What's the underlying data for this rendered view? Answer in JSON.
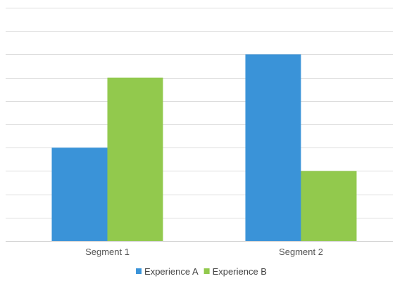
{
  "chart_data": {
    "type": "bar",
    "title": "",
    "xlabel": "",
    "ylabel": "",
    "categories": [
      "Segment 1",
      "Segment 2"
    ],
    "series": [
      {
        "name": "Experience A",
        "values": [
          4,
          8
        ],
        "color": "#3a93d8"
      },
      {
        "name": "Experience B",
        "values": [
          7,
          3
        ],
        "color": "#92c94d"
      }
    ],
    "ylim": [
      0,
      10
    ],
    "grid": true,
    "grid_color": "#dddddd",
    "legend_position": "bottom"
  }
}
